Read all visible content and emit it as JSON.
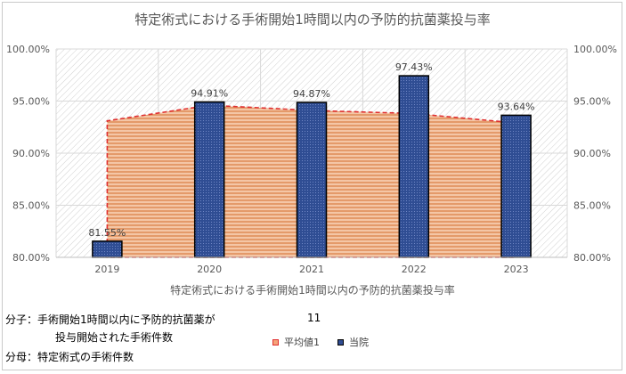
{
  "chart_data": {
    "type": "bar",
    "title": "特定術式における手術開始1時間以内の予防的抗菌薬投与率",
    "xlabel": "特定術式における手術開始1時間以内の予防的抗菌薬投与率",
    "categories": [
      "2019",
      "2020",
      "2021",
      "2022",
      "2023"
    ],
    "ylim": [
      80,
      100
    ],
    "yticks": [
      "80.00%",
      "85.00%",
      "90.00%",
      "95.00%",
      "100.00%"
    ],
    "y2ticks": [
      "80.00%",
      "85.00%",
      "90.00%",
      "95.00%",
      "100.00%"
    ],
    "grid": true,
    "legend_position": "bottom",
    "series": [
      {
        "name": "平均値1",
        "type": "area",
        "values": [
          93.1,
          94.6,
          94.1,
          93.8,
          92.9
        ],
        "color": "#ed7d31",
        "line_color": "#e03030"
      },
      {
        "name": "当院",
        "type": "bar",
        "values": [
          81.55,
          94.91,
          94.87,
          97.43,
          93.64
        ],
        "labels": [
          "81.55%",
          "94.91%",
          "94.87%",
          "97.43%",
          "93.64%"
        ],
        "color": "#2f4d93"
      }
    ]
  },
  "notes": {
    "numerator_line1": "分子：手術開始1時間以内に予防的抗菌薬が",
    "numerator_line2": "投与開始された手術件数",
    "denominator": "分母：特定術式の手術件数",
    "count": "11"
  }
}
